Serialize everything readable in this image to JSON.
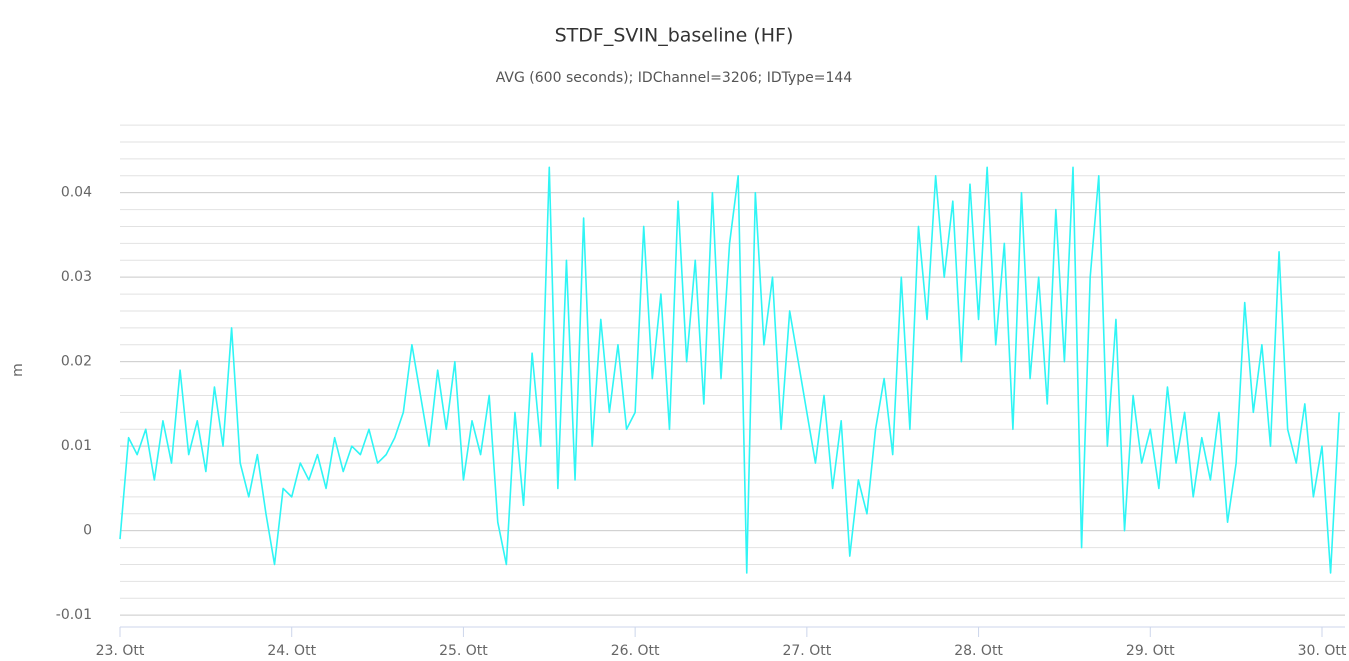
{
  "chart_data": {
    "type": "line",
    "title": "STDF_SVIN_baseline (HF)",
    "subtitle": "AVG (600 seconds); IDChannel=3206; IDType=144",
    "y_label": "m",
    "xlim": [
      23,
      30.134
    ],
    "ylim": [
      -0.0114,
      0.0486
    ],
    "yticks": [
      -0.01,
      0,
      0.01,
      0.02,
      0.03,
      0.04
    ],
    "xticks": [
      {
        "value": 23,
        "label": "23. Ott"
      },
      {
        "value": 24,
        "label": "24. Ott"
      },
      {
        "value": 25,
        "label": "25. Ott"
      },
      {
        "value": 26,
        "label": "26. Ott"
      },
      {
        "value": 27,
        "label": "27. Ott"
      },
      {
        "value": 28,
        "label": "28. Ott"
      },
      {
        "value": 29,
        "label": "29. Ott"
      },
      {
        "value": 30,
        "label": "30. Ott"
      }
    ],
    "grid": true,
    "x": [
      23,
      23.05,
      23.1,
      23.15,
      23.2,
      23.25,
      23.3,
      23.35,
      23.4,
      23.45,
      23.5,
      23.55,
      23.6,
      23.65,
      23.7,
      23.75,
      23.8,
      23.85,
      23.9,
      23.95,
      24,
      24.05,
      24.1,
      24.15,
      24.2,
      24.25,
      24.3,
      24.35,
      24.4,
      24.45,
      24.5,
      24.55,
      24.6,
      24.65,
      24.7,
      24.75,
      24.8,
      24.85,
      24.9,
      24.95,
      25,
      25.05,
      25.1,
      25.15,
      25.2,
      25.25,
      25.3,
      25.35,
      25.4,
      25.45,
      25.5,
      25.55,
      25.6,
      25.65,
      25.7,
      25.75,
      25.8,
      25.85,
      25.9,
      25.95,
      26,
      26.05,
      26.1,
      26.15,
      26.2,
      26.25,
      26.3,
      26.35,
      26.4,
      26.45,
      26.5,
      26.55,
      26.6,
      26.65,
      26.7,
      26.75,
      26.8,
      26.85,
      26.9,
      26.95,
      27,
      27.05,
      27.1,
      27.15,
      27.2,
      27.25,
      27.3,
      27.35,
      27.4,
      27.45,
      27.5,
      27.55,
      27.6,
      27.65,
      27.7,
      27.75,
      27.8,
      27.85,
      27.9,
      27.95,
      28,
      28.05,
      28.1,
      28.15,
      28.2,
      28.25,
      28.3,
      28.35,
      28.4,
      28.45,
      28.5,
      28.55,
      28.6,
      28.65,
      28.7,
      28.75,
      28.8,
      28.85,
      28.9,
      28.95,
      29,
      29.05,
      29.1,
      29.15,
      29.2,
      29.25,
      29.3,
      29.35,
      29.4,
      29.45,
      29.5,
      29.55,
      29.6,
      29.65,
      29.7,
      29.75,
      29.8,
      29.85,
      29.9,
      29.95,
      30,
      30.05,
      30.1
    ],
    "series": [
      {
        "name": "STDF_SVIN_baseline",
        "color": "#2ff5f5",
        "values": [
          -0.001,
          0.011,
          0.009,
          0.012,
          0.006,
          0.013,
          0.008,
          0.019,
          0.009,
          0.013,
          0.007,
          0.017,
          0.01,
          0.024,
          0.008,
          0.004,
          0.009,
          0.002,
          -0.004,
          0.005,
          0.004,
          0.008,
          0.006,
          0.009,
          0.005,
          0.011,
          0.007,
          0.01,
          0.009,
          0.012,
          0.008,
          0.009,
          0.011,
          0.014,
          0.022,
          0.016,
          0.01,
          0.019,
          0.012,
          0.02,
          0.006,
          0.013,
          0.009,
          0.016,
          0.001,
          -0.004,
          0.014,
          0.003,
          0.021,
          0.01,
          0.043,
          0.005,
          0.032,
          0.006,
          0.037,
          0.01,
          0.025,
          0.014,
          0.022,
          0.012,
          0.014,
          0.036,
          0.018,
          0.028,
          0.012,
          0.039,
          0.02,
          0.032,
          0.015,
          0.04,
          0.018,
          0.034,
          0.042,
          -0.005,
          0.04,
          0.022,
          0.03,
          0.012,
          0.026,
          0.02,
          0.014,
          0.008,
          0.016,
          0.005,
          0.013,
          -0.003,
          0.006,
          0.002,
          0.012,
          0.018,
          0.009,
          0.03,
          0.012,
          0.036,
          0.025,
          0.042,
          0.03,
          0.039,
          0.02,
          0.041,
          0.025,
          0.043,
          0.022,
          0.034,
          0.012,
          0.04,
          0.018,
          0.03,
          0.015,
          0.038,
          0.02,
          0.043,
          -0.002,
          0.03,
          0.042,
          0.01,
          0.025,
          0,
          0.016,
          0.008,
          0.012,
          0.005,
          0.017,
          0.008,
          0.014,
          0.004,
          0.011,
          0.006,
          0.014,
          0.001,
          0.008,
          0.027,
          0.014,
          0.022,
          0.01,
          0.033,
          0.012,
          0.008,
          0.015,
          0.004,
          0.01,
          -0.005,
          0.014
        ]
      }
    ]
  }
}
